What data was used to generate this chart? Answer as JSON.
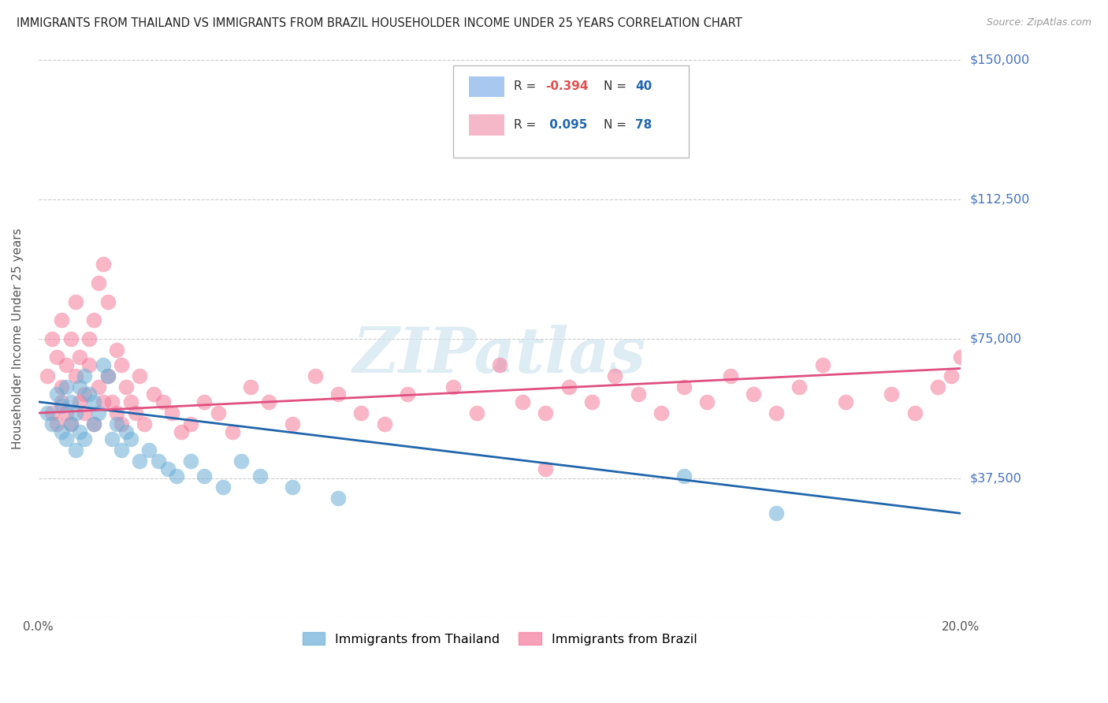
{
  "title": "IMMIGRANTS FROM THAILAND VS IMMIGRANTS FROM BRAZIL HOUSEHOLDER INCOME UNDER 25 YEARS CORRELATION CHART",
  "source": "Source: ZipAtlas.com",
  "ylabel": "Householder Income Under 25 years",
  "xlim": [
    0,
    0.2
  ],
  "ylim": [
    0,
    150000
  ],
  "yticks": [
    0,
    37500,
    75000,
    112500,
    150000
  ],
  "ytick_labels": [
    "",
    "$37,500",
    "$75,000",
    "$112,500",
    "$150,000"
  ],
  "xticks": [
    0.0,
    0.04,
    0.08,
    0.12,
    0.16,
    0.2
  ],
  "xtick_labels": [
    "0.0%",
    "",
    "",
    "",
    "",
    "20.0%"
  ],
  "legend_bottom": [
    "Immigrants from Thailand",
    "Immigrants from Brazil"
  ],
  "thailand_color": "#a8c8f0",
  "thailand_dot_color": "#6baed6",
  "brazil_color": "#f4b8c8",
  "brazil_dot_color": "#f47a9a",
  "thailand_line_color": "#2166ac",
  "brazil_line_color": "#e05080",
  "background_color": "#ffffff",
  "watermark": "ZIPatlas",
  "thailand_R": -0.394,
  "thailand_N": 40,
  "brazil_R": 0.095,
  "brazil_N": 78,
  "thailand_x": [
    0.002,
    0.003,
    0.004,
    0.005,
    0.005,
    0.006,
    0.006,
    0.007,
    0.007,
    0.008,
    0.008,
    0.009,
    0.009,
    0.01,
    0.01,
    0.011,
    0.012,
    0.012,
    0.013,
    0.014,
    0.015,
    0.016,
    0.017,
    0.018,
    0.019,
    0.02,
    0.022,
    0.024,
    0.026,
    0.028,
    0.03,
    0.033,
    0.036,
    0.04,
    0.044,
    0.048,
    0.055,
    0.065,
    0.14,
    0.16
  ],
  "thailand_y": [
    55000,
    52000,
    60000,
    50000,
    57000,
    48000,
    62000,
    52000,
    58000,
    55000,
    45000,
    62000,
    50000,
    65000,
    48000,
    60000,
    52000,
    58000,
    55000,
    68000,
    65000,
    48000,
    52000,
    45000,
    50000,
    48000,
    42000,
    45000,
    42000,
    40000,
    38000,
    42000,
    38000,
    35000,
    42000,
    38000,
    35000,
    32000,
    38000,
    28000
  ],
  "brazil_x": [
    0.002,
    0.003,
    0.003,
    0.004,
    0.004,
    0.005,
    0.005,
    0.005,
    0.006,
    0.006,
    0.007,
    0.007,
    0.008,
    0.008,
    0.009,
    0.009,
    0.01,
    0.01,
    0.011,
    0.011,
    0.012,
    0.012,
    0.013,
    0.013,
    0.014,
    0.014,
    0.015,
    0.015,
    0.016,
    0.017,
    0.017,
    0.018,
    0.018,
    0.019,
    0.02,
    0.021,
    0.022,
    0.023,
    0.025,
    0.027,
    0.029,
    0.031,
    0.033,
    0.036,
    0.039,
    0.042,
    0.046,
    0.05,
    0.055,
    0.06,
    0.065,
    0.07,
    0.075,
    0.08,
    0.09,
    0.095,
    0.1,
    0.105,
    0.11,
    0.115,
    0.12,
    0.125,
    0.13,
    0.135,
    0.14,
    0.145,
    0.15,
    0.155,
    0.16,
    0.165,
    0.17,
    0.175,
    0.185,
    0.19,
    0.195,
    0.198,
    0.2,
    0.11
  ],
  "brazil_y": [
    65000,
    55000,
    75000,
    52000,
    70000,
    62000,
    58000,
    80000,
    55000,
    68000,
    75000,
    52000,
    65000,
    85000,
    58000,
    70000,
    60000,
    55000,
    68000,
    75000,
    52000,
    80000,
    62000,
    90000,
    58000,
    95000,
    65000,
    85000,
    58000,
    72000,
    55000,
    68000,
    52000,
    62000,
    58000,
    55000,
    65000,
    52000,
    60000,
    58000,
    55000,
    50000,
    52000,
    58000,
    55000,
    50000,
    62000,
    58000,
    52000,
    65000,
    60000,
    55000,
    52000,
    60000,
    62000,
    55000,
    68000,
    58000,
    55000,
    62000,
    58000,
    65000,
    60000,
    55000,
    62000,
    58000,
    65000,
    60000,
    55000,
    62000,
    68000,
    58000,
    60000,
    55000,
    62000,
    65000,
    70000,
    40000
  ]
}
